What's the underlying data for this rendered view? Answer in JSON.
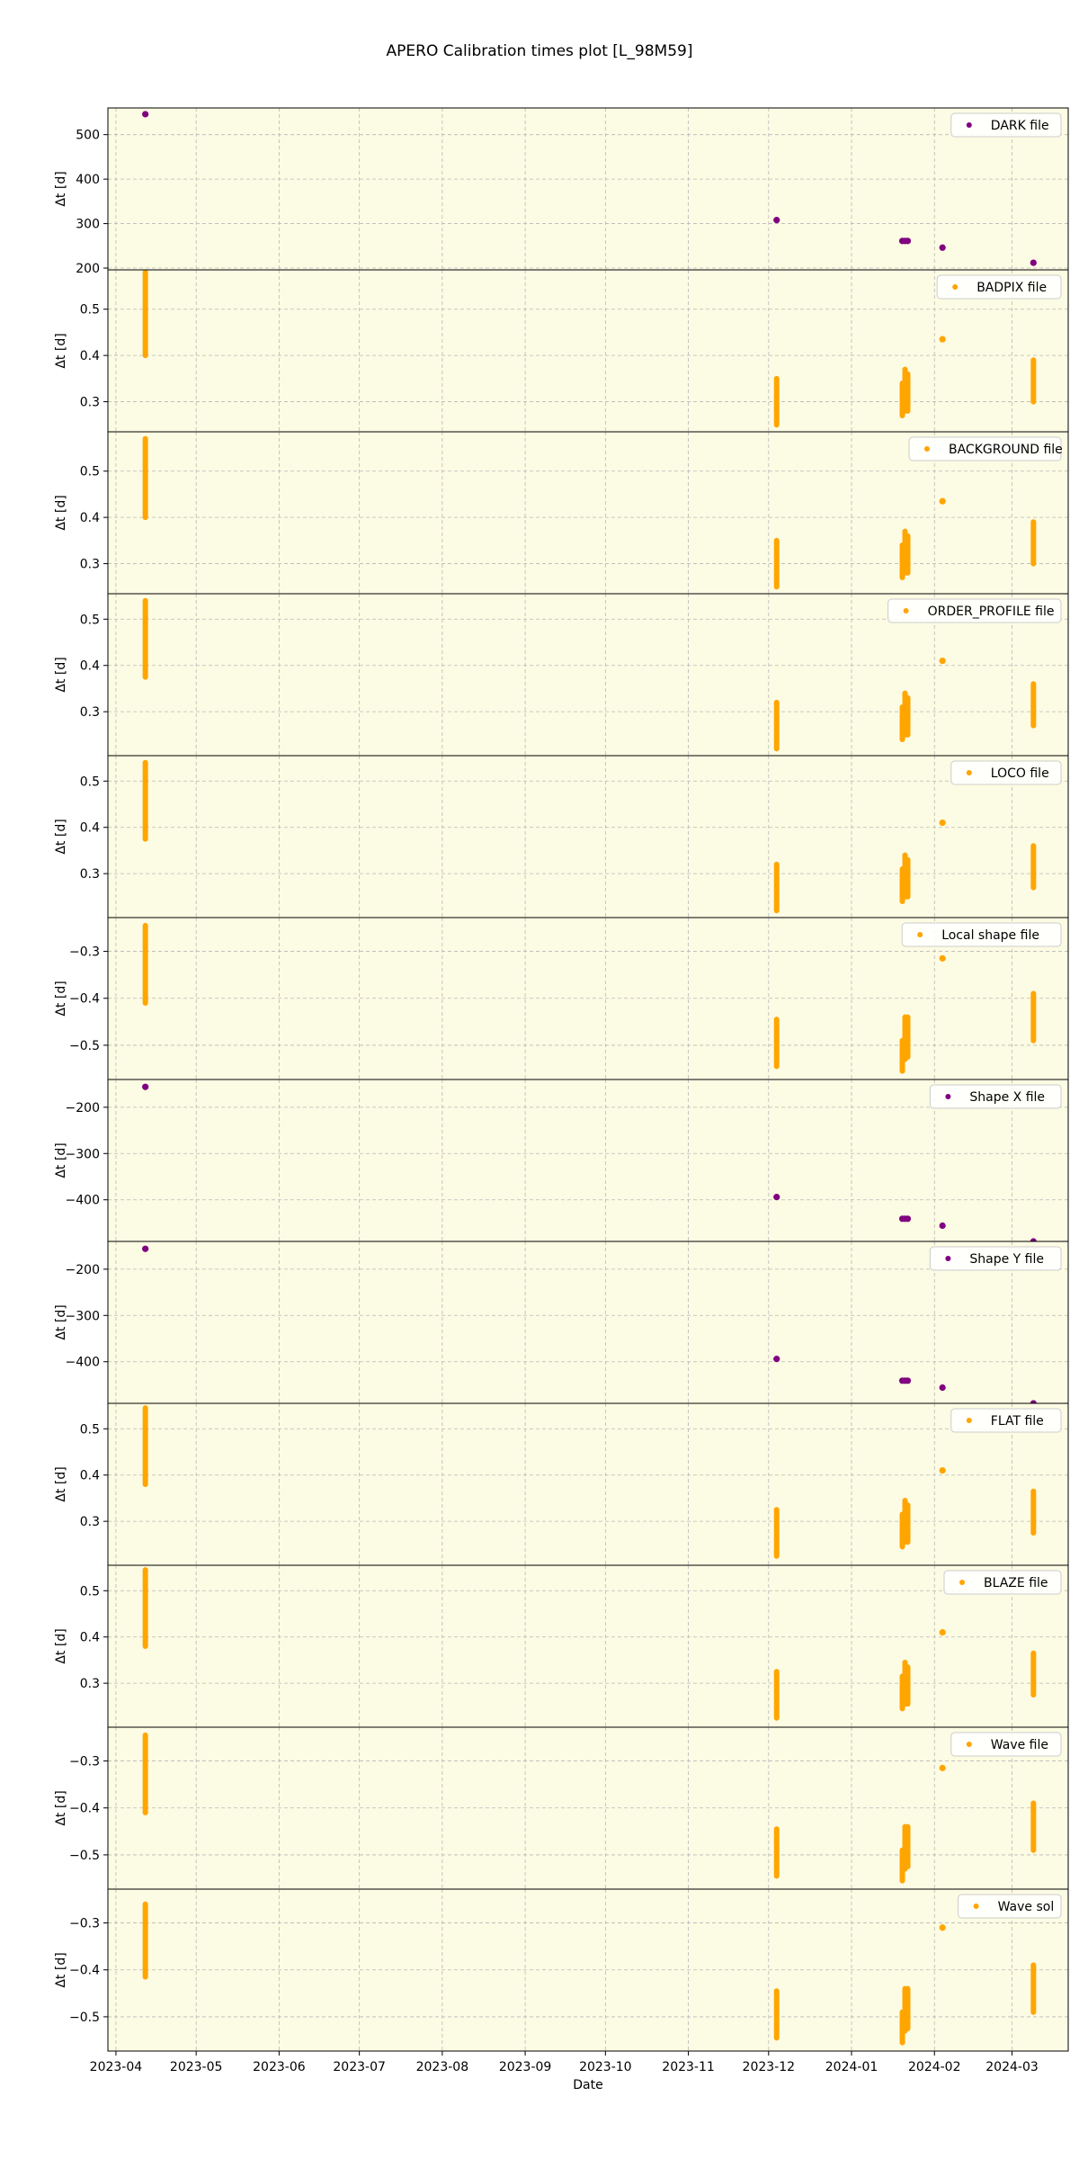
{
  "title": "APERO Calibration times plot [L_98M59]",
  "chart_data": {
    "type": "scatter",
    "title": "APERO Calibration times plot [L_98M59]",
    "xlabel": "Date",
    "ylabel": "Δt [d]",
    "x_axis": {
      "type": "date",
      "range": [
        "2023-03-29",
        "2024-03-22"
      ],
      "ticks": [
        "2023-04-01",
        "2023-05-01",
        "2023-06-01",
        "2023-07-01",
        "2023-08-01",
        "2023-09-01",
        "2023-10-01",
        "2023-11-01",
        "2023-12-01",
        "2024-01-01",
        "2024-02-01",
        "2024-03-01"
      ],
      "tick_labels": [
        "2023-04",
        "2023-05",
        "2023-06",
        "2023-07",
        "2023-08",
        "2023-09",
        "2023-10",
        "2023-11",
        "2023-12",
        "2024-01",
        "2024-02",
        "2024-03"
      ]
    },
    "grid": true,
    "legend_position": "top-right",
    "background_color": "#fcfbe3",
    "colors": {
      "purple": "#800080",
      "orange": "#ffa500"
    },
    "panels": [
      {
        "name": "DARK file",
        "color": "#800080",
        "ylim": [
          196,
          560
        ],
        "yticks": [
          200,
          300,
          400,
          500
        ],
        "points": [
          {
            "x": "2023-04-12",
            "y": [
              546
            ]
          },
          {
            "x": "2023-12-04",
            "y": [
              308
            ]
          },
          {
            "x": "2024-01-20",
            "y": [
              261
            ]
          },
          {
            "x": "2024-01-21",
            "y": [
              261
            ]
          },
          {
            "x": "2024-01-22",
            "y": [
              261
            ]
          },
          {
            "x": "2024-02-04",
            "y": [
              246
            ]
          },
          {
            "x": "2024-03-09",
            "y": [
              212
            ]
          }
        ]
      },
      {
        "name": "BADPIX file",
        "color": "#ffa500",
        "ylim": [
          0.235,
          0.585
        ],
        "yticks": [
          0.3,
          0.4,
          0.5
        ],
        "points": [
          {
            "x": "2023-04-12",
            "y": [
              0.4,
              0.58
            ]
          },
          {
            "x": "2023-12-04",
            "y": [
              0.25,
              0.35
            ]
          },
          {
            "x": "2024-01-20",
            "y": [
              0.27,
              0.34
            ]
          },
          {
            "x": "2024-01-21",
            "y": [
              0.28,
              0.37
            ]
          },
          {
            "x": "2024-01-22",
            "y": [
              0.28,
              0.36
            ]
          },
          {
            "x": "2024-02-04",
            "y": [
              0.435
            ]
          },
          {
            "x": "2024-03-09",
            "y": [
              0.3,
              0.39
            ]
          }
        ]
      },
      {
        "name": "BACKGROUND file",
        "color": "#ffa500",
        "ylim": [
          0.235,
          0.585
        ],
        "yticks": [
          0.3,
          0.4,
          0.5
        ],
        "points": [
          {
            "x": "2023-04-12",
            "y": [
              0.4,
              0.57
            ]
          },
          {
            "x": "2023-12-04",
            "y": [
              0.25,
              0.35
            ]
          },
          {
            "x": "2024-01-20",
            "y": [
              0.27,
              0.34
            ]
          },
          {
            "x": "2024-01-21",
            "y": [
              0.28,
              0.37
            ]
          },
          {
            "x": "2024-01-22",
            "y": [
              0.28,
              0.36
            ]
          },
          {
            "x": "2024-02-04",
            "y": [
              0.435
            ]
          },
          {
            "x": "2024-03-09",
            "y": [
              0.3,
              0.39
            ]
          }
        ]
      },
      {
        "name": "ORDER_PROFILE file",
        "color": "#ffa500",
        "ylim": [
          0.205,
          0.555
        ],
        "yticks": [
          0.3,
          0.4,
          0.5
        ],
        "points": [
          {
            "x": "2023-04-12",
            "y": [
              0.375,
              0.54
            ]
          },
          {
            "x": "2023-12-04",
            "y": [
              0.22,
              0.32
            ]
          },
          {
            "x": "2024-01-20",
            "y": [
              0.24,
              0.31
            ]
          },
          {
            "x": "2024-01-21",
            "y": [
              0.25,
              0.34
            ]
          },
          {
            "x": "2024-01-22",
            "y": [
              0.25,
              0.33
            ]
          },
          {
            "x": "2024-02-04",
            "y": [
              0.41
            ]
          },
          {
            "x": "2024-03-09",
            "y": [
              0.27,
              0.36
            ]
          }
        ]
      },
      {
        "name": "LOCO file",
        "color": "#ffa500",
        "ylim": [
          0.205,
          0.555
        ],
        "yticks": [
          0.3,
          0.4,
          0.5
        ],
        "points": [
          {
            "x": "2023-04-12",
            "y": [
              0.375,
              0.54
            ]
          },
          {
            "x": "2023-12-04",
            "y": [
              0.22,
              0.32
            ]
          },
          {
            "x": "2024-01-20",
            "y": [
              0.24,
              0.31
            ]
          },
          {
            "x": "2024-01-21",
            "y": [
              0.25,
              0.34
            ]
          },
          {
            "x": "2024-01-22",
            "y": [
              0.25,
              0.33
            ]
          },
          {
            "x": "2024-02-04",
            "y": [
              0.41
            ]
          },
          {
            "x": "2024-03-09",
            "y": [
              0.27,
              0.36
            ]
          }
        ]
      },
      {
        "name": "Local shape file",
        "color": "#ffa500",
        "ylim": [
          -0.573,
          -0.228
        ],
        "yticks": [
          -0.3,
          -0.4,
          -0.5
        ],
        "points": [
          {
            "x": "2023-04-12",
            "y": [
              -0.41,
              -0.245
            ]
          },
          {
            "x": "2023-12-04",
            "y": [
              -0.545,
              -0.445
            ]
          },
          {
            "x": "2024-01-20",
            "y": [
              -0.555,
              -0.49
            ]
          },
          {
            "x": "2024-01-21",
            "y": [
              -0.53,
              -0.44
            ]
          },
          {
            "x": "2024-01-22",
            "y": [
              -0.525,
              -0.44
            ]
          },
          {
            "x": "2024-02-04",
            "y": [
              -0.315
            ]
          },
          {
            "x": "2024-03-09",
            "y": [
              -0.49,
              -0.39
            ]
          }
        ]
      },
      {
        "name": "Shape X file",
        "color": "#800080",
        "ylim": [
          -490,
          -140
        ],
        "yticks": [
          -200,
          -300,
          -400
        ],
        "points": [
          {
            "x": "2023-04-12",
            "y": [
              -156
            ]
          },
          {
            "x": "2023-12-04",
            "y": [
              -394
            ]
          },
          {
            "x": "2024-01-20",
            "y": [
              -441
            ]
          },
          {
            "x": "2024-01-21",
            "y": [
              -441
            ]
          },
          {
            "x": "2024-01-22",
            "y": [
              -441
            ]
          },
          {
            "x": "2024-02-04",
            "y": [
              -456
            ]
          },
          {
            "x": "2024-03-09",
            "y": [
              -490
            ]
          }
        ]
      },
      {
        "name": "Shape Y file",
        "color": "#800080",
        "ylim": [
          -490,
          -140
        ],
        "yticks": [
          -200,
          -300,
          -400
        ],
        "points": [
          {
            "x": "2023-04-12",
            "y": [
              -156
            ]
          },
          {
            "x": "2023-12-04",
            "y": [
              -394
            ]
          },
          {
            "x": "2024-01-20",
            "y": [
              -441
            ]
          },
          {
            "x": "2024-01-21",
            "y": [
              -441
            ]
          },
          {
            "x": "2024-01-22",
            "y": [
              -441
            ]
          },
          {
            "x": "2024-02-04",
            "y": [
              -456
            ]
          },
          {
            "x": "2024-03-09",
            "y": [
              -490
            ]
          }
        ]
      },
      {
        "name": "FLAT file",
        "color": "#ffa500",
        "ylim": [
          0.205,
          0.555
        ],
        "yticks": [
          0.3,
          0.4,
          0.5
        ],
        "points": [
          {
            "x": "2023-04-12",
            "y": [
              0.38,
              0.545
            ]
          },
          {
            "x": "2023-12-04",
            "y": [
              0.225,
              0.325
            ]
          },
          {
            "x": "2024-01-20",
            "y": [
              0.245,
              0.315
            ]
          },
          {
            "x": "2024-01-21",
            "y": [
              0.255,
              0.345
            ]
          },
          {
            "x": "2024-01-22",
            "y": [
              0.255,
              0.335
            ]
          },
          {
            "x": "2024-02-04",
            "y": [
              0.41
            ]
          },
          {
            "x": "2024-03-09",
            "y": [
              0.275,
              0.365
            ]
          }
        ]
      },
      {
        "name": "BLAZE file",
        "color": "#ffa500",
        "ylim": [
          0.205,
          0.555
        ],
        "yticks": [
          0.3,
          0.4,
          0.5
        ],
        "points": [
          {
            "x": "2023-04-12",
            "y": [
              0.38,
              0.545
            ]
          },
          {
            "x": "2023-12-04",
            "y": [
              0.225,
              0.325
            ]
          },
          {
            "x": "2024-01-20",
            "y": [
              0.245,
              0.315
            ]
          },
          {
            "x": "2024-01-21",
            "y": [
              0.255,
              0.345
            ]
          },
          {
            "x": "2024-01-22",
            "y": [
              0.255,
              0.335
            ]
          },
          {
            "x": "2024-02-04",
            "y": [
              0.41
            ]
          },
          {
            "x": "2024-03-09",
            "y": [
              0.275,
              0.365
            ]
          }
        ]
      },
      {
        "name": "Wave file",
        "color": "#ffa500",
        "ylim": [
          -0.573,
          -0.228
        ],
        "yticks": [
          -0.3,
          -0.4,
          -0.5
        ],
        "points": [
          {
            "x": "2023-04-12",
            "y": [
              -0.41,
              -0.245
            ]
          },
          {
            "x": "2023-12-04",
            "y": [
              -0.545,
              -0.445
            ]
          },
          {
            "x": "2024-01-20",
            "y": [
              -0.555,
              -0.49
            ]
          },
          {
            "x": "2024-01-21",
            "y": [
              -0.53,
              -0.44
            ]
          },
          {
            "x": "2024-01-22",
            "y": [
              -0.525,
              -0.44
            ]
          },
          {
            "x": "2024-02-04",
            "y": [
              -0.315
            ]
          },
          {
            "x": "2024-03-09",
            "y": [
              -0.49,
              -0.39
            ]
          }
        ]
      },
      {
        "name": "Wave sol",
        "color": "#ffa500",
        "ylim": [
          -0.573,
          -0.228
        ],
        "yticks": [
          -0.3,
          -0.4,
          -0.5
        ],
        "points": [
          {
            "x": "2023-04-12",
            "y": [
              -0.415,
              -0.26
            ]
          },
          {
            "x": "2023-12-04",
            "y": [
              -0.545,
              -0.445
            ]
          },
          {
            "x": "2024-01-20",
            "y": [
              -0.555,
              -0.49
            ]
          },
          {
            "x": "2024-01-21",
            "y": [
              -0.53,
              -0.44
            ]
          },
          {
            "x": "2024-01-22",
            "y": [
              -0.525,
              -0.44
            ]
          },
          {
            "x": "2024-02-04",
            "y": [
              -0.31
            ]
          },
          {
            "x": "2024-03-09",
            "y": [
              -0.49,
              -0.39
            ]
          }
        ]
      }
    ]
  }
}
